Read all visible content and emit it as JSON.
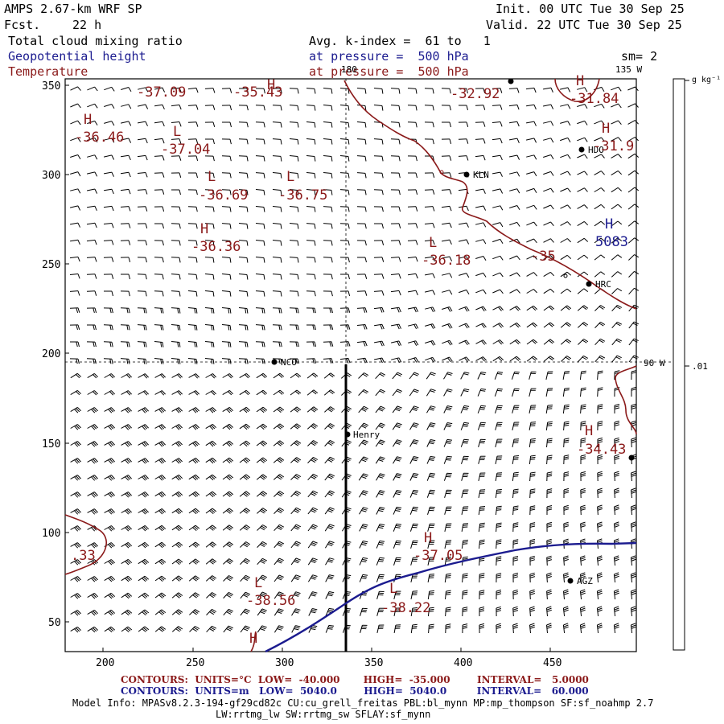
{
  "header": {
    "title": "AMPS 2.67-km WRF SP",
    "forecast_label": "Fcst.",
    "forecast_value": "22 h",
    "init": "Init. 00 UTC Tue 30 Sep 25",
    "valid": "Valid. 22 UTC Tue 30 Sep 25",
    "field1": "Total cloud mixing ratio",
    "field2": "Geopotential height",
    "field3": "Temperature",
    "avg_line": "Avg. k-index =  61 to   1",
    "pressure1": "at pressure =  500 hPa",
    "pressure2": "at pressure =  500 hPa",
    "sm": "sm= 2"
  },
  "map": {
    "x_ticks": [
      "200",
      "250",
      "300",
      "350",
      "400",
      "450"
    ],
    "y_ticks": [
      "350",
      "300",
      "250",
      "200",
      "150",
      "100",
      "50"
    ],
    "meridian_top": "180",
    "meridian_135": "135 W",
    "meridian_90": "90 W",
    "colorbar_units": "g kg⁻¹",
    "colorbar_tick": ".01",
    "stations": [
      "HDO",
      "KLN",
      "HRC",
      "NCO",
      "Henry",
      "AGZ"
    ],
    "temp_extrema": [
      {
        "kind": "H",
        "value": "-36.46"
      },
      {
        "kind": "L",
        "value": "-37.04"
      },
      {
        "kind": "L",
        "value": "-36.69"
      },
      {
        "kind": "L",
        "value": "-36.75"
      },
      {
        "kind": "H",
        "value": "-36.36"
      },
      {
        "kind": "L",
        "value": "-36.18"
      },
      {
        "kind": "H",
        "value": "-31.84"
      },
      {
        "kind": "H",
        "value": "-31.9"
      },
      {
        "kind": "H",
        "value": "-34.43"
      },
      {
        "kind": "H",
        "value": "-37.05"
      },
      {
        "kind": "L",
        "value": "-38.56"
      },
      {
        "kind": "L",
        "value": "-38.22"
      },
      {
        "kind": "H",
        "value": "-35.43"
      },
      {
        "kind": "",
        "value": "-37.09"
      },
      {
        "kind": "",
        "value": "-32.92"
      }
    ],
    "temp_contour_label": "-35",
    "temp_partial_label": ".33",
    "height_extremum": {
      "kind": "H",
      "value": "5083"
    },
    "colors": {
      "temperature": "#8b1a1a",
      "height": "#1b1b8f",
      "wind": "#000000"
    }
  },
  "footer": {
    "temp_contours": "CONTOURS:  UNITS=°C  LOW=  -40.000       HIGH=  -35.000        INTERVAL=   5.0000",
    "height_contours": "CONTOURS:  UNITS=m   LOW=  5040.0        HIGH=  5040.0         INTERVAL=   60.000",
    "model_info": "Model Info: MPASv8.2.3-194-gf29cd82c CU:cu_grell_freitas PBL:bl_mynn MP:mp_thompson SF:sf_noahmp 2.7",
    "model_info2": "LW:rrtmg_lw SW:rrtmg_sw SFLAY:sf_mynn"
  }
}
